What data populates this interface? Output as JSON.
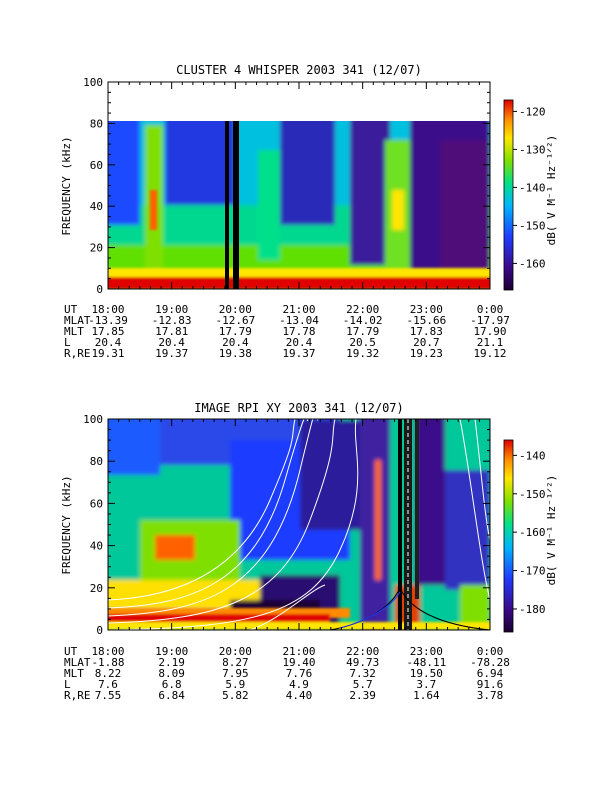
{
  "chart_data": [
    {
      "type": "heatmap",
      "title": "CLUSTER 4 WHISPER 2003 341 (12/07)",
      "ylabel": "FREQUENCY (kHz)",
      "ylim": [
        0,
        100
      ],
      "y_ticks": [
        "0",
        "20",
        "40",
        "60",
        "80",
        "100"
      ],
      "x_ticks": [
        "18:00",
        "19:00",
        "20:00",
        "21:00",
        "22:00",
        "23:00",
        "0:00"
      ],
      "colorbar": {
        "label": "dB( V M⁻¹ Hz⁻¹ᐟ²)",
        "ticks": [
          "-120",
          "-130",
          "-140",
          "-150",
          "-160"
        ],
        "range": [
          -167,
          -117
        ]
      },
      "data_top_khz": 80,
      "ephemeris": [
        {
          "label": "UT",
          "values": [
            "18:00",
            "19:00",
            "20:00",
            "21:00",
            "22:00",
            "23:00",
            "0:00"
          ]
        },
        {
          "label": "MLAT",
          "values": [
            "-13.39",
            "-12.83",
            "-12.67",
            "-13.04",
            "-14.02",
            "-15.66",
            "-17.97"
          ]
        },
        {
          "label": "MLT",
          "values": [
            "17.85",
            "17.81",
            "17.79",
            "17.78",
            "17.79",
            "17.83",
            "17.90"
          ]
        },
        {
          "label": "L",
          "values": [
            "20.4",
            "20.4",
            "20.4",
            "20.4",
            "20.5",
            "20.7",
            "21.1"
          ]
        },
        {
          "label": "R,RE",
          "values": [
            "19.31",
            "19.37",
            "19.38",
            "19.37",
            "19.32",
            "19.23",
            "19.12"
          ]
        }
      ]
    },
    {
      "type": "heatmap",
      "title": "IMAGE RPI XY 2003 341 (12/07)",
      "ylabel": "FREQUENCY (kHz)",
      "ylim": [
        0,
        100
      ],
      "y_ticks": [
        "0",
        "20",
        "40",
        "60",
        "80",
        "100"
      ],
      "x_ticks": [
        "18:00",
        "19:00",
        "20:00",
        "21:00",
        "22:00",
        "23:00",
        "0:00"
      ],
      "colorbar": {
        "label": "dB( V M⁻¹ Hz⁻¹ᐟ²)",
        "ticks": [
          "-140",
          "-150",
          "-160",
          "-170",
          "-180"
        ],
        "range": [
          -186,
          -136
        ]
      },
      "ephemeris": [
        {
          "label": "UT",
          "values": [
            "18:00",
            "19:00",
            "20:00",
            "21:00",
            "22:00",
            "23:00",
            "0:00"
          ]
        },
        {
          "label": "MLAT",
          "values": [
            "-1.88",
            "2.19",
            "8.27",
            "19.40",
            "49.73",
            "-48.11",
            "-78.28"
          ]
        },
        {
          "label": "MLT",
          "values": [
            "8.22",
            "8.09",
            "7.95",
            "7.76",
            "7.32",
            "19.50",
            "6.94"
          ]
        },
        {
          "label": "L",
          "values": [
            "7.6",
            "6.8",
            "5.9",
            "4.9",
            "5.7",
            "3.7",
            "91.6"
          ]
        },
        {
          "label": "R,RE",
          "values": [
            "7.55",
            "6.84",
            "5.82",
            "4.40",
            "2.39",
            "1.64",
            "3.78"
          ]
        }
      ]
    }
  ]
}
